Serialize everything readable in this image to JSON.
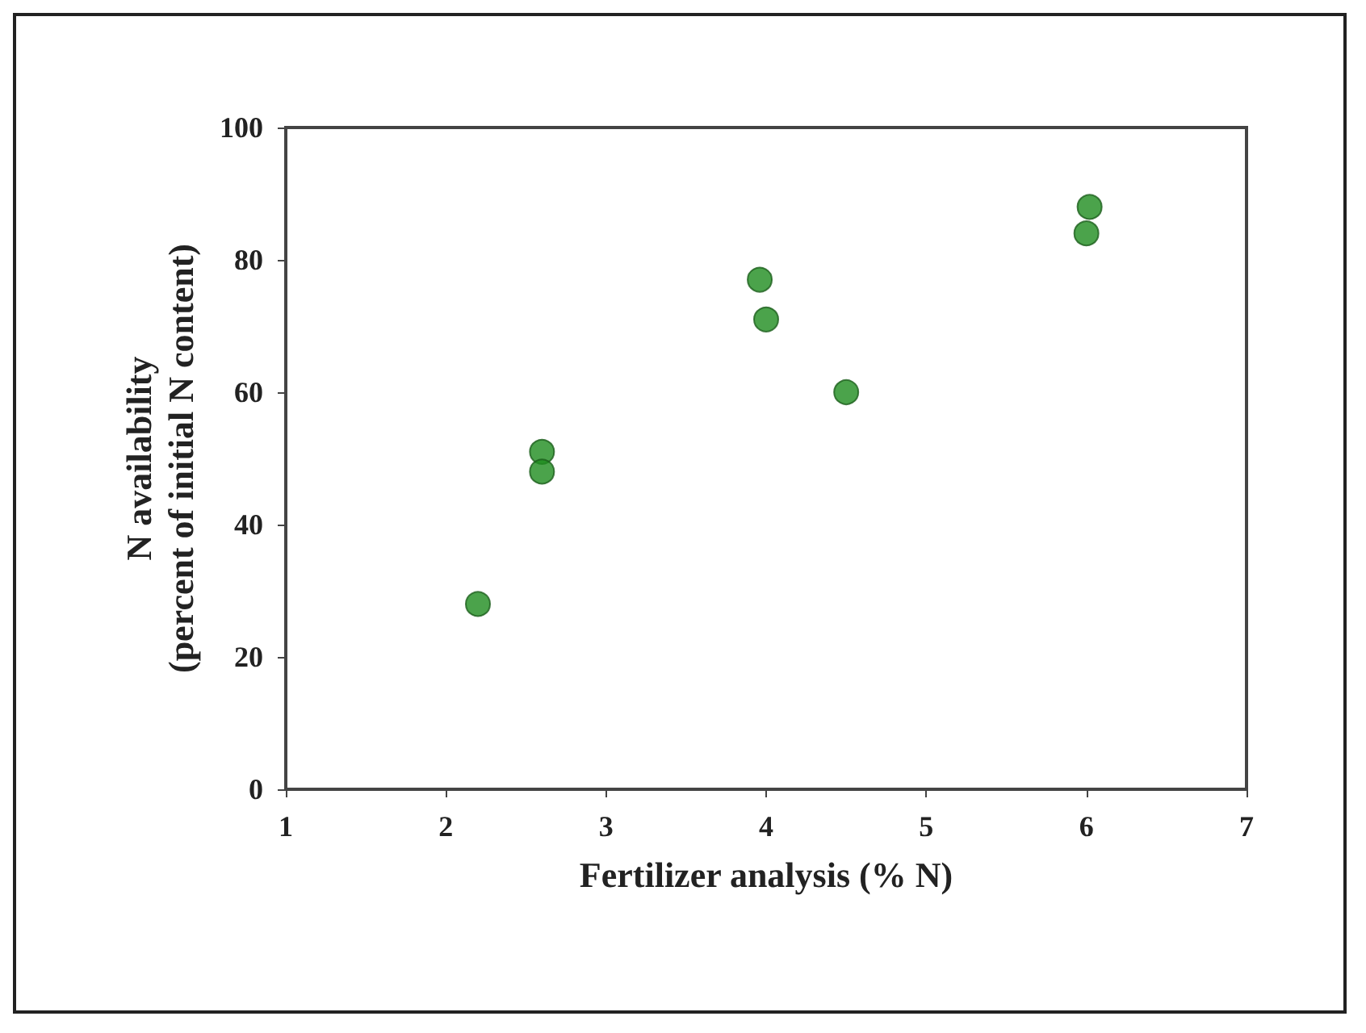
{
  "chart_data": {
    "type": "scatter",
    "xlabel": "Fertilizer analysis (% N)",
    "ylabel": "N availability\n(percent of initial N content)",
    "x": [
      2.2,
      2.6,
      2.6,
      3.96,
      4.0,
      4.5,
      6.0,
      6.02
    ],
    "series": [
      {
        "color": "#1e8c1e",
        "values": [
          28,
          51,
          48,
          77,
          71,
          60,
          84,
          88
        ]
      }
    ],
    "xlim": [
      1,
      7
    ],
    "xticks": [
      1,
      2,
      3,
      4,
      5,
      6,
      7
    ],
    "ylim": [
      0,
      100
    ],
    "yticks": [
      0,
      20,
      40,
      60,
      80,
      100
    ],
    "marker": "circle",
    "grid": false
  }
}
